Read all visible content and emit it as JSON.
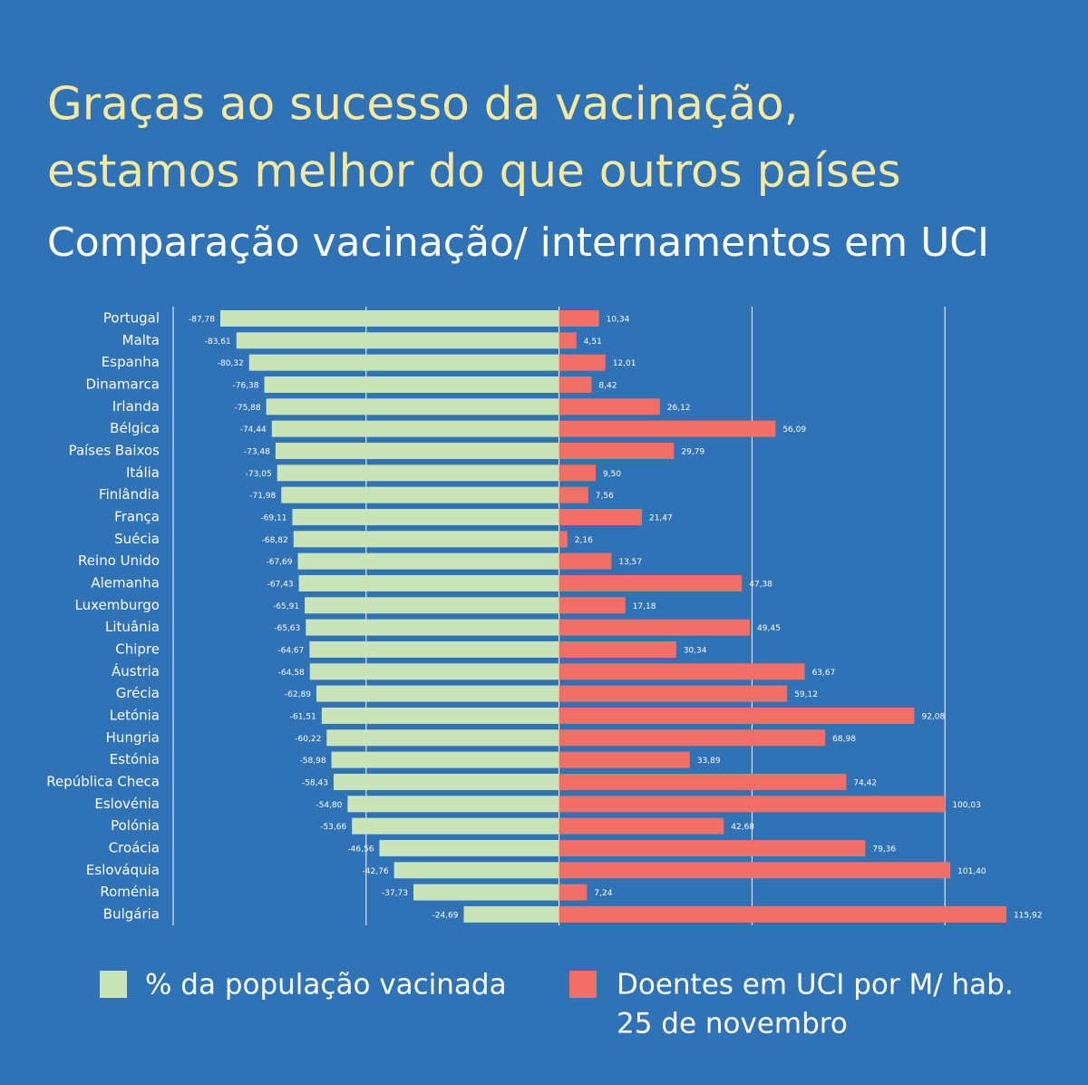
{
  "chart_data": {
    "type": "diverging_bar",
    "title": [
      "Graças ao sucesso da vacinação,",
      "estamos melhor do que outros países"
    ],
    "subtitle": "Comparação vacinação/ internamentos em UCI",
    "categories": [
      "Portugal",
      "Malta",
      "Espanha",
      "Dinamarca",
      "Irlanda",
      "Bélgica",
      "Países Baixos",
      "Itália",
      "Finlândia",
      "França",
      "Suécia",
      "Reino Unido",
      "Alemanha",
      "Luxemburgo",
      "Lituânia",
      "Chipre",
      "Áustria",
      "Grécia",
      "Letónia",
      "Hungria",
      "Estónia",
      "República Checa",
      "Eslovénia",
      "Polónia",
      "Croácia",
      "Eslováquia",
      "Roménia",
      "Bulgária"
    ],
    "series": [
      {
        "name": "% da população vacinada",
        "color": "#c8e4b8",
        "values": [
          -87.78,
          -83.61,
          -80.32,
          -76.38,
          -75.88,
          -74.44,
          -73.48,
          -73.05,
          -71.98,
          -69.11,
          -68.82,
          -67.69,
          -67.43,
          -65.91,
          -65.63,
          -64.67,
          -64.58,
          -62.89,
          -61.51,
          -60.22,
          -58.98,
          -58.43,
          -54.8,
          -53.66,
          -46.56,
          -42.76,
          -37.73,
          -24.69
        ],
        "value_labels": [
          "-87,78",
          "-83,61",
          "-80,32",
          "-76,38",
          "-75,88",
          "-74,44",
          "-73,48",
          "-73,05",
          "-71,98",
          "-69,11",
          "-68,82",
          "-67,69",
          "-67,43",
          "-65,91",
          "-65,63",
          "-64,67",
          "-64,58",
          "-62,89",
          "-61,51",
          "-60,22",
          "-58,98",
          "-58,43",
          "-54,80",
          "-53,66",
          "-46,56",
          "-42,76",
          "-37,73",
          "-24,69"
        ]
      },
      {
        "name": "Doentes em UCI por M/ hab.",
        "date": "25 de novembro",
        "color": "#f07068",
        "values": [
          10.34,
          4.51,
          12.01,
          8.42,
          26.12,
          56.09,
          29.79,
          9.5,
          7.56,
          21.47,
          2.16,
          13.57,
          47.38,
          17.18,
          49.45,
          30.34,
          63.67,
          59.12,
          92.08,
          68.98,
          33.89,
          74.42,
          100.03,
          42.68,
          79.36,
          101.4,
          7.24,
          115.92
        ],
        "value_labels": [
          "10,34",
          "4,51",
          "12,01",
          "8,42",
          "26,12",
          "56,09",
          "29,79",
          "9,50",
          "7,56",
          "21,47",
          "2,16",
          "13,57",
          "47,38",
          "17,18",
          "49,45",
          "30,34",
          "63,67",
          "59,12",
          "92,08",
          "68,98",
          "33,89",
          "74,42",
          "100,03",
          "42,68",
          "79,36",
          "101,40",
          "7,24",
          "115,92"
        ]
      }
    ],
    "xlim": [
      -100,
      125
    ],
    "xticks": [
      -100,
      -50,
      0,
      50,
      100
    ],
    "grid": true
  }
}
